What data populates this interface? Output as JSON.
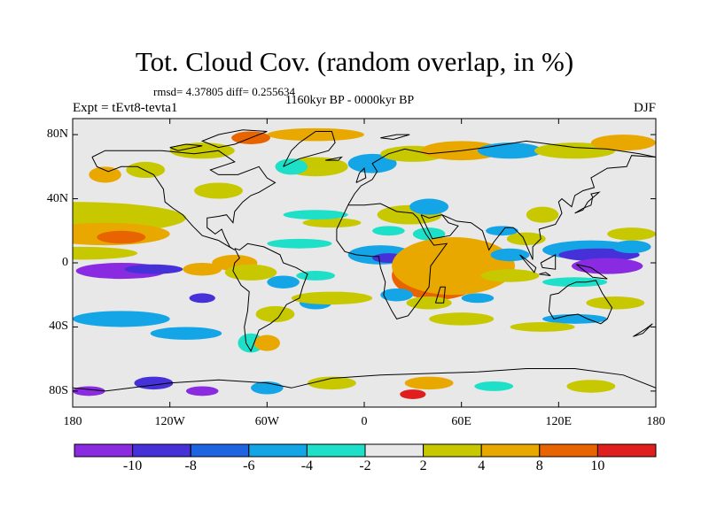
{
  "title": "Tot. Cloud Cov. (random overlap, in %)",
  "stats_line": "rmsd= 4.37805 diff= 0.255634",
  "period": "1160kyr BP - 0000kyr BP",
  "experiment": "Expt = tEvt8-tevta1",
  "season": "DJF",
  "lat_ticks": [
    {
      "label": "80N",
      "value": 80
    },
    {
      "label": "40N",
      "value": 40
    },
    {
      "label": "0",
      "value": 0
    },
    {
      "label": "40S",
      "value": -40
    },
    {
      "label": "80S",
      "value": -80
    }
  ],
  "lon_ticks": [
    {
      "label": "180",
      "value": -180
    },
    {
      "label": "120W",
      "value": -120
    },
    {
      "label": "60W",
      "value": -60
    },
    {
      "label": "0",
      "value": 0
    },
    {
      "label": "60E",
      "value": 60
    },
    {
      "label": "120E",
      "value": 120
    },
    {
      "label": "180",
      "value": 180
    }
  ],
  "colorbar": {
    "labels": [
      "-10",
      "-8",
      "-6",
      "-4",
      "-2",
      "2",
      "4",
      "8",
      "10"
    ],
    "colors": [
      "#8a2be2",
      "#4630d8",
      "#1e64e0",
      "#14a5e6",
      "#1ee0c8",
      "#e8e8e8",
      "#c8c800",
      "#e8a800",
      "#e86400",
      "#e01e1e"
    ]
  },
  "map_colors": {
    "neutral": "#e8e8e8",
    "violet": "#8a2be2",
    "indigo": "#4630d8",
    "blue": "#1e64e0",
    "sky": "#14a5e6",
    "cyan": "#1ee0c8",
    "olive": "#c8c800",
    "orange": "#e8a800",
    "vermillion": "#e86400",
    "red": "#e01e1e",
    "coast": "#000000"
  }
}
